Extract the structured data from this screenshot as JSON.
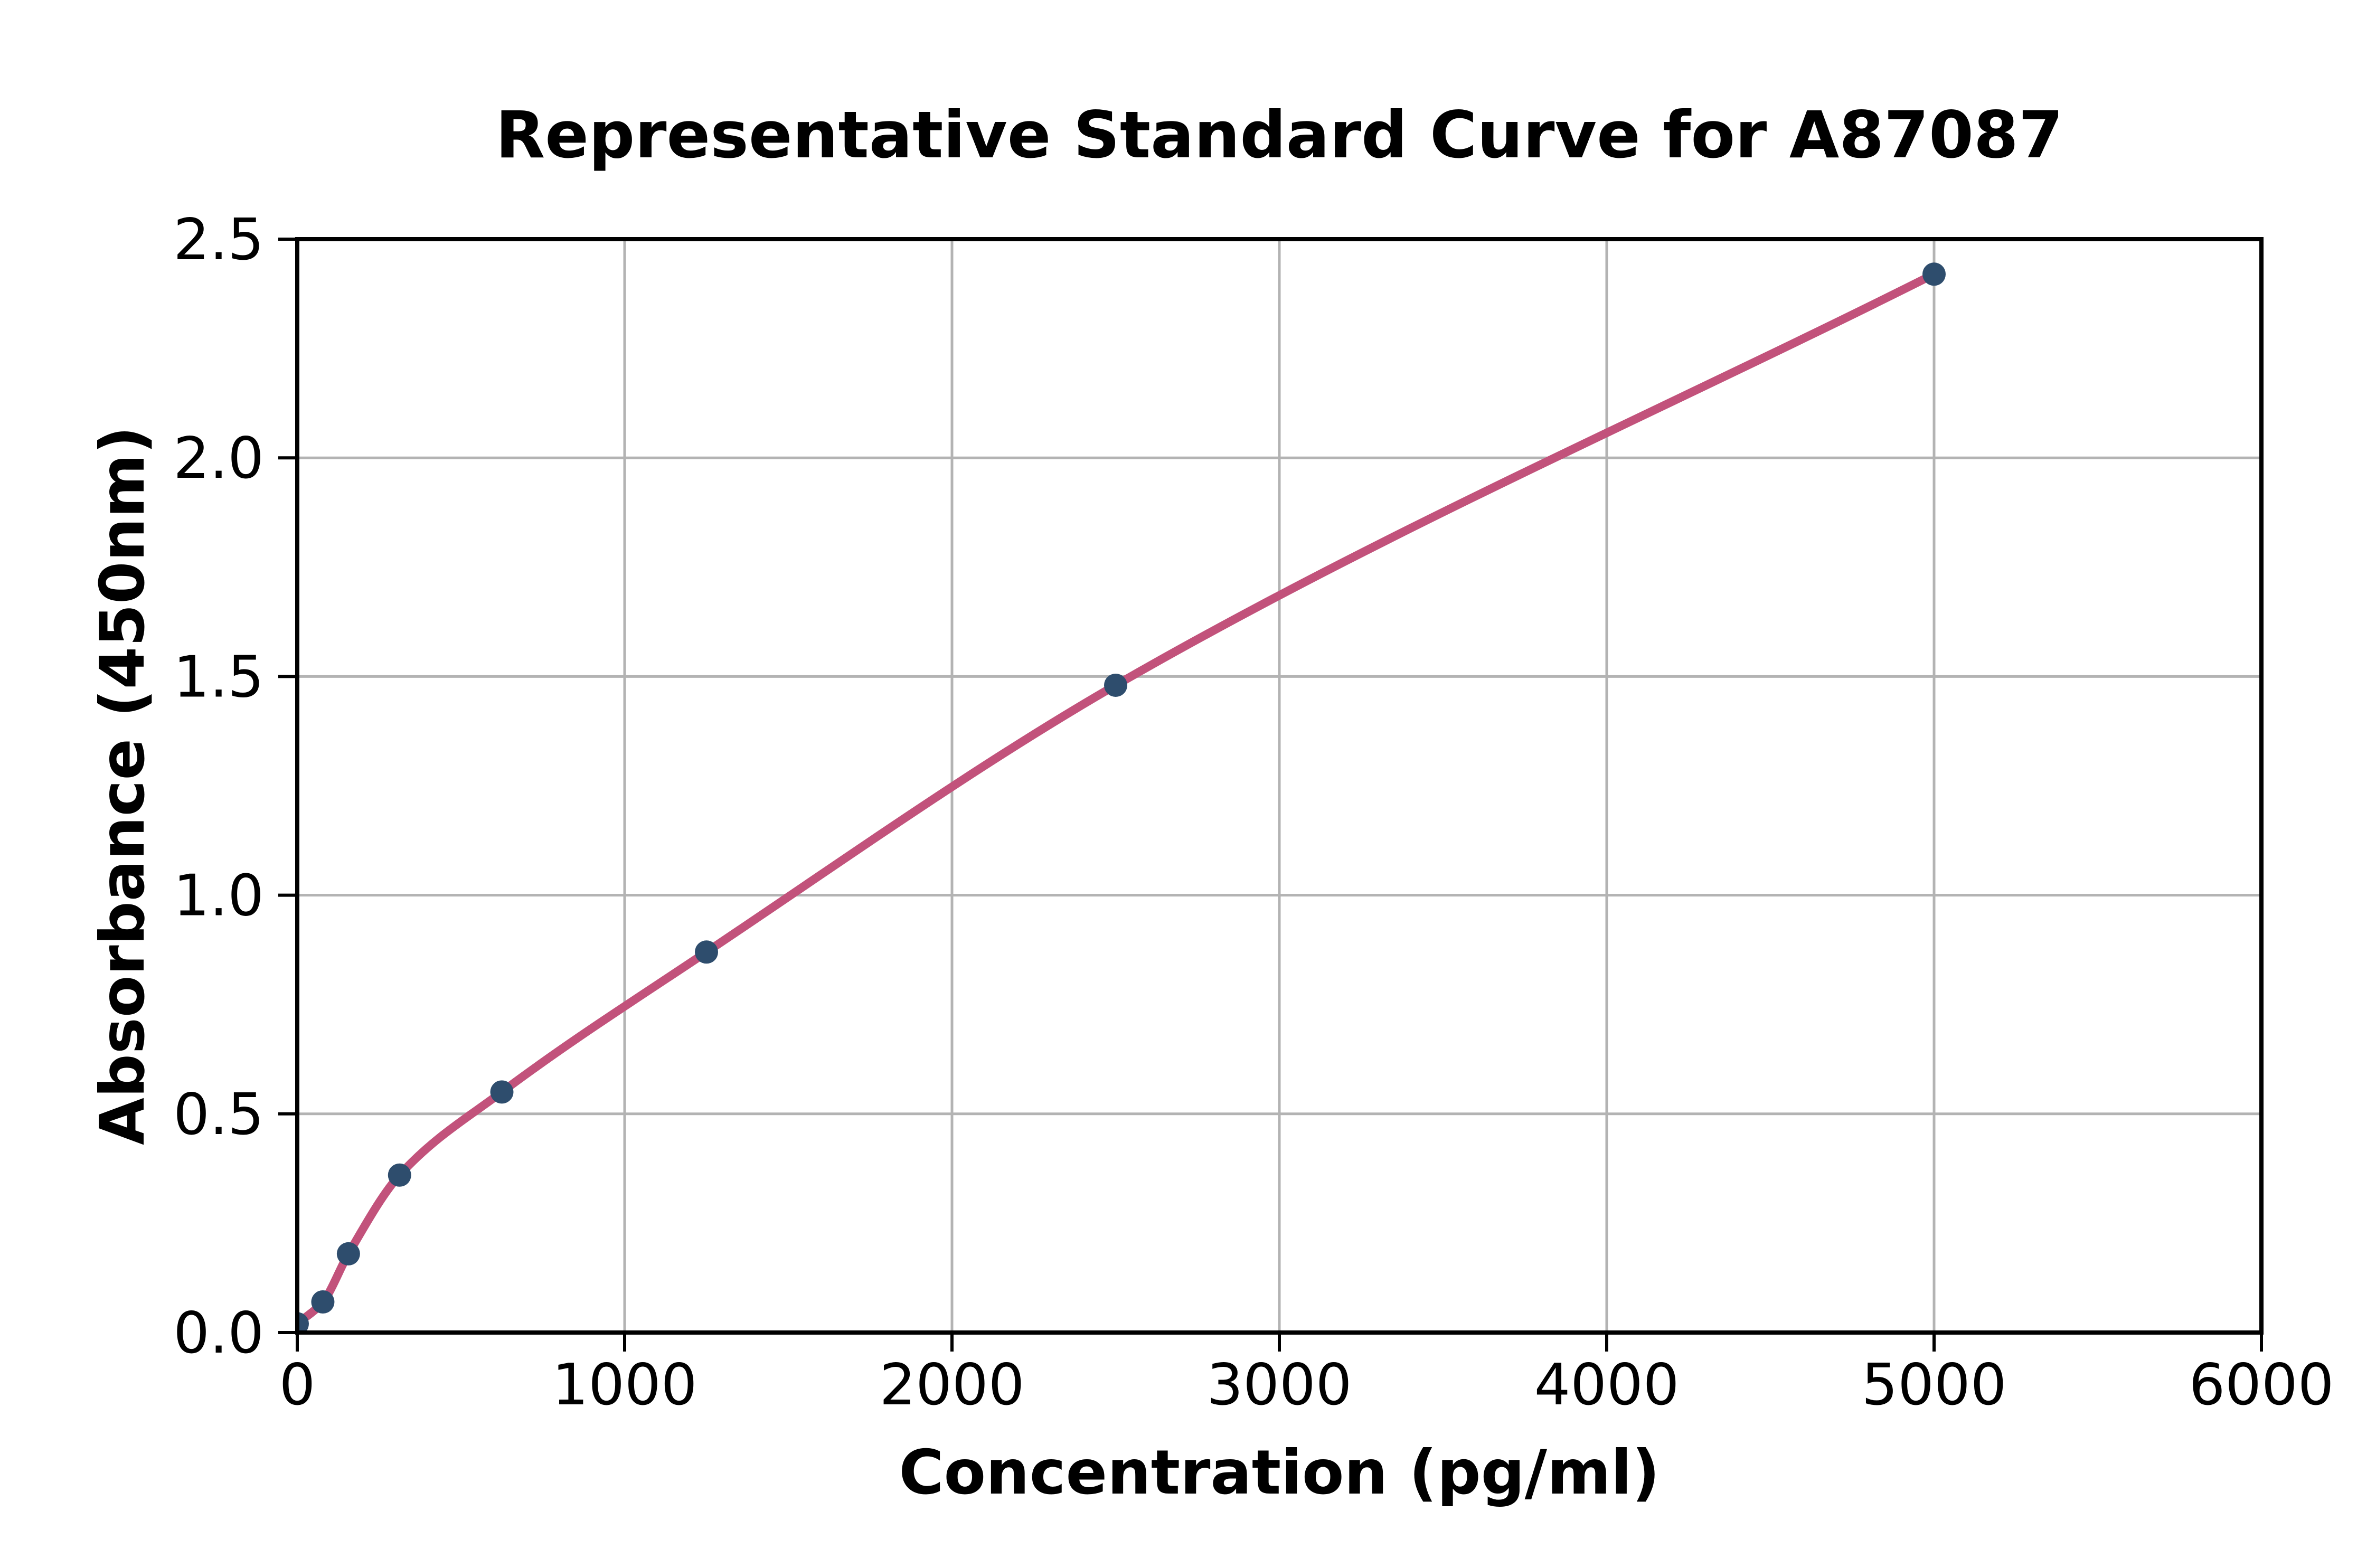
{
  "chart_data": {
    "type": "scatter",
    "title": "Representative Standard Curve for A87087",
    "xlabel": "Concentration (pg/ml)",
    "ylabel": "Absorbance (450nm)",
    "xlim": [
      0,
      6000
    ],
    "ylim": [
      0,
      2.5
    ],
    "xticks": [
      0,
      1000,
      2000,
      3000,
      4000,
      5000,
      6000
    ],
    "xtick_labels": [
      "0",
      "1000",
      "2000",
      "3000",
      "4000",
      "5000",
      "6000"
    ],
    "yticks": [
      0,
      0.5,
      1.0,
      1.5,
      2.0,
      2.5
    ],
    "ytick_labels": [
      "0.0",
      "0.5",
      "1.0",
      "1.5",
      "2.0",
      "2.5"
    ],
    "grid": true,
    "legend_position": "none",
    "series": [
      {
        "name": "standard-points",
        "style": "scatter",
        "points": [
          {
            "x": 0,
            "y": 0.02
          },
          {
            "x": 78.13,
            "y": 0.07
          },
          {
            "x": 156.25,
            "y": 0.18
          },
          {
            "x": 312.5,
            "y": 0.36
          },
          {
            "x": 625,
            "y": 0.55
          },
          {
            "x": 1250,
            "y": 0.87
          },
          {
            "x": 2500,
            "y": 1.48
          },
          {
            "x": 5000,
            "y": 2.42
          }
        ]
      },
      {
        "name": "fitted-curve",
        "style": "smooth-line",
        "x_range": [
          0,
          5000
        ]
      }
    ],
    "colors": {
      "marker": "#2e4d6d",
      "line": "#c2527b",
      "grid": "#b3b3b3",
      "spine": "#000000",
      "text": "#000000",
      "background": "#ffffff"
    }
  }
}
